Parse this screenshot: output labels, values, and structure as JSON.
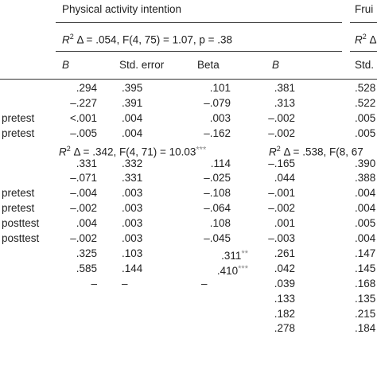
{
  "header": {
    "group1": "Physical activity intention",
    "group2": "Frui",
    "model1_pre": "R",
    "model1_mid": "Δ = .054, F(4, 75) = 1.07, p = .38",
    "model2_pre": "R",
    "model2_mid": "Δ",
    "sup2": "2"
  },
  "columns": [
    "B",
    "Std. error",
    "Beta",
    "B",
    "Std."
  ],
  "row_labels": [
    "",
    "",
    "pretest",
    "pretest",
    "",
    "",
    "",
    "pretest",
    "pretest",
    "posttest",
    "posttest",
    "",
    "",
    "",
    "",
    "",
    ""
  ],
  "rows": [
    {
      "b": ".294",
      "se": ".395",
      "beta": ".101",
      "b2": ".381",
      "se2": ".528"
    },
    {
      "b": "–.227",
      "se": ".391",
      "beta": "–.079",
      "b2": ".313",
      "se2": ".522"
    },
    {
      "b": "<.001",
      "se": ".004",
      "beta": ".003",
      "b2": "–.002",
      "se2": ".005"
    },
    {
      "b": "–.005",
      "se": ".004",
      "beta": "–.162",
      "b2": "–.002",
      "se2": ".005"
    },
    {
      "special": true,
      "r2_pre": "R",
      "r2_mid": "Δ = .342, F(4, 71) = 10.03",
      "r2_sig": "***",
      "r2b_pre": "R",
      "r2b_mid": "Δ = .538, F(8, 67"
    },
    {
      "b": ".331",
      "se": ".332",
      "beta": ".114",
      "b2": "–.165",
      "se2": ".390"
    },
    {
      "b": "–.071",
      "se": ".331",
      "beta": "–.025",
      "b2": ".044",
      "se2": ".388"
    },
    {
      "b": "–.004",
      "se": ".003",
      "beta": "–.108",
      "b2": "–.001",
      "se2": ".004"
    },
    {
      "b": "–.002",
      "se": ".003",
      "beta": "–.064",
      "b2": "–.002",
      "se2": ".004"
    },
    {
      "b": ".004",
      "se": ".003",
      "beta": ".108",
      "b2": ".001",
      "se2": ".005"
    },
    {
      "b": "–.002",
      "se": ".003",
      "beta": "–.045",
      "b2": "–.003",
      "se2": ".004"
    },
    {
      "b": ".325",
      "se": ".103",
      "beta": ".311",
      "beta_sig": "**",
      "b2": ".261",
      "se2": ".147"
    },
    {
      "b": ".585",
      "se": ".144",
      "beta": ".410",
      "beta_sig": "***",
      "b2": ".042",
      "se2": ".145"
    },
    {
      "b": "–",
      "se": "–",
      "beta": "–",
      "b2": ".039",
      "se2": ".168"
    },
    {
      "b": "",
      "se": "",
      "beta": "",
      "b2": ".133",
      "se2": ".135"
    },
    {
      "b": "",
      "se": "",
      "beta": "",
      "b2": ".182",
      "se2": ".215"
    },
    {
      "b": "",
      "se": "",
      "beta": "",
      "b2": ".278",
      "se2": ".184"
    }
  ]
}
